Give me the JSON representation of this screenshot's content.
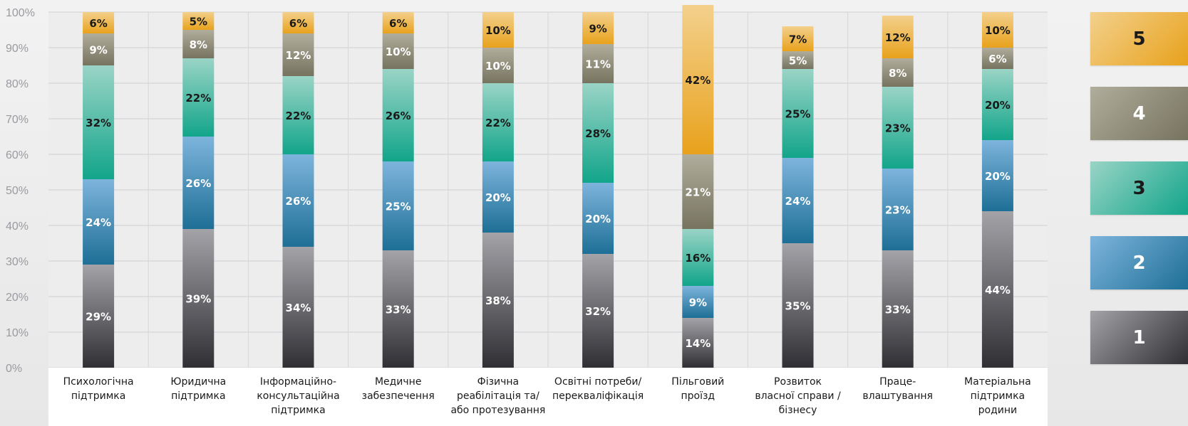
{
  "chart_data": {
    "type": "bar",
    "stacked": true,
    "ylim": [
      0,
      100
    ],
    "yticks": [
      "0%",
      "10%",
      "20%",
      "30%",
      "40%",
      "50%",
      "60%",
      "70%",
      "80%",
      "90%",
      "100%"
    ],
    "grid": true,
    "legend_position": "right",
    "categories": [
      [
        "Психологічна",
        "підтримка"
      ],
      [
        "Юридична",
        "підтримка"
      ],
      [
        "Інформаційно-",
        "консультаційна",
        "підтримка"
      ],
      [
        "Медичне",
        "забезпечення"
      ],
      [
        "Фізична",
        "реабілітація та/",
        "або протезування"
      ],
      [
        "Освітні потреби/",
        "перекваліфікація"
      ],
      [
        "Пільговий",
        "проїзд"
      ],
      [
        "Розвиток",
        "власної справи /",
        "бізнесу"
      ],
      [
        "Праце-",
        "влаштування"
      ],
      [
        "Матеріальна",
        "підтримка",
        "родини"
      ]
    ],
    "series": [
      {
        "name": "1",
        "values": [
          29,
          39,
          34,
          33,
          38,
          32,
          14,
          35,
          33,
          44
        ],
        "labels": [
          "29%",
          "39%",
          "34%",
          "33%",
          "38%",
          "32%",
          "14%",
          "35%",
          "33%",
          "44%"
        ]
      },
      {
        "name": "2",
        "values": [
          24,
          26,
          26,
          25,
          20,
          20,
          9,
          24,
          23,
          20
        ],
        "labels": [
          "24%",
          "26%",
          "26%",
          "25%",
          "20%",
          "20%",
          "9%",
          "24%",
          "23%",
          "20%"
        ]
      },
      {
        "name": "3",
        "values": [
          32,
          22,
          22,
          26,
          22,
          28,
          16,
          25,
          23,
          20
        ],
        "labels": [
          "32%",
          "22%",
          "22%",
          "26%",
          "22%",
          "28%",
          "16%",
          "25%",
          "23%",
          "20%"
        ]
      },
      {
        "name": "4",
        "values": [
          9,
          8,
          12,
          10,
          10,
          11,
          21,
          5,
          8,
          6
        ],
        "labels": [
          "9%",
          "8%",
          "12%",
          "10%",
          "10%",
          "11%",
          "21%",
          "5%",
          "8%",
          "6%"
        ]
      },
      {
        "name": "5",
        "values": [
          6,
          5,
          6,
          6,
          10,
          9,
          42,
          7,
          12,
          10
        ],
        "labels": [
          "6%",
          "5%",
          "6%",
          "6%",
          "10%",
          "9%",
          "42%",
          "7%",
          "12%",
          "10%"
        ]
      }
    ],
    "series_colors": [
      {
        "top": "#a3a3a8",
        "bottom": "#2f2f34",
        "text": "#ffffff"
      },
      {
        "top": "#7db4dc",
        "bottom": "#1e6f96",
        "text": "#ffffff"
      },
      {
        "top": "#9ad4c6",
        "bottom": "#12a58a",
        "text": "#1a1a1a"
      },
      {
        "top": "#b0ad9c",
        "bottom": "#76735f",
        "text": "#ffffff"
      },
      {
        "top": "#f3d08c",
        "bottom": "#e8a21c",
        "text": "#1a1a1a"
      }
    ]
  },
  "legend": [
    {
      "label": "5",
      "top": "#f3d08c",
      "bottom": "#e8a21c",
      "text": "#1a1a1a"
    },
    {
      "label": "4",
      "top": "#b0ad9c",
      "bottom": "#76735f",
      "text": "#ffffff"
    },
    {
      "label": "3",
      "top": "#9ad4c6",
      "bottom": "#12a58a",
      "text": "#1a1a1a"
    },
    {
      "label": "2",
      "top": "#7db4dc",
      "bottom": "#1e6f96",
      "text": "#ffffff"
    },
    {
      "label": "1",
      "top": "#a3a3a8",
      "bottom": "#2f2f34",
      "text": "#ffffff"
    }
  ]
}
